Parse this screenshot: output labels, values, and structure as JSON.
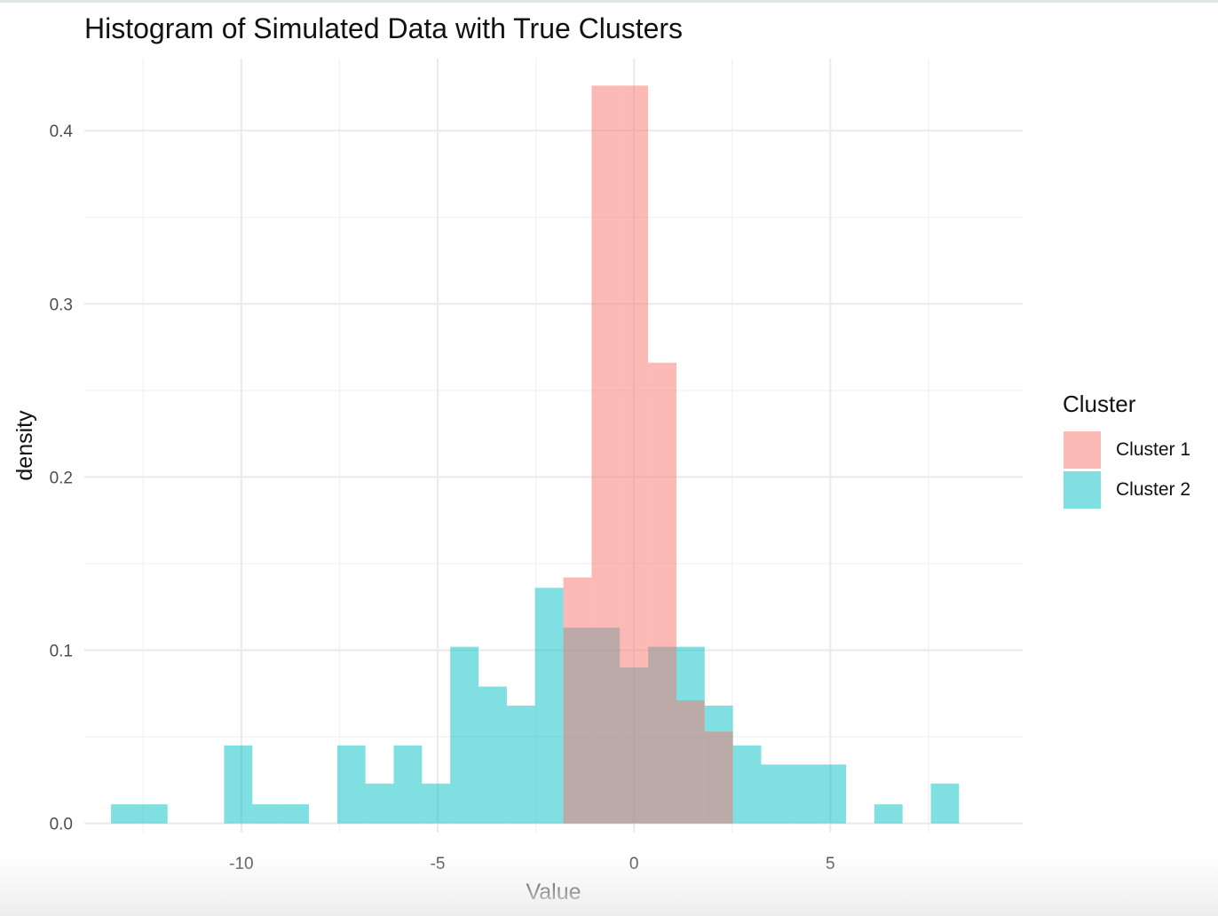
{
  "chart_data": {
    "type": "histogram",
    "title": "Histogram of Simulated Data with True Clusters",
    "xlabel": "Value",
    "ylabel": "density",
    "xlim": [
      -14.0,
      9.9
    ],
    "ylim": [
      -0.0053,
      0.4416
    ],
    "x_ticks": [
      -10,
      -5,
      0,
      5
    ],
    "x_tick_labels": [
      "-10",
      "-5",
      "0",
      "5"
    ],
    "y_ticks": [
      0.0,
      0.1,
      0.2,
      0.3,
      0.4
    ],
    "y_tick_labels": [
      "0.0",
      "0.1",
      "0.2",
      "0.3",
      "0.4"
    ],
    "grid": true,
    "bin_width": 0.72,
    "legend": {
      "title": "Cluster",
      "position": "right"
    },
    "series": [
      {
        "name": "Cluster 1",
        "color": "#F8766D",
        "bins": [
          {
            "x0": -1.8,
            "x1": -1.08,
            "density": 0.142
          },
          {
            "x0": -1.08,
            "x1": -0.36,
            "density": 0.426
          },
          {
            "x0": -0.36,
            "x1": 0.36,
            "density": 0.426
          },
          {
            "x0": 0.36,
            "x1": 1.08,
            "density": 0.266
          },
          {
            "x0": 1.08,
            "x1": 1.8,
            "density": 0.071
          },
          {
            "x0": 1.8,
            "x1": 2.52,
            "density": 0.053
          }
        ]
      },
      {
        "name": "Cluster 2",
        "color": "#00BFC4",
        "bins": [
          {
            "x0": -13.32,
            "x1": -12.6,
            "density": 0.011
          },
          {
            "x0": -12.6,
            "x1": -11.88,
            "density": 0.011
          },
          {
            "x0": -10.44,
            "x1": -9.72,
            "density": 0.045
          },
          {
            "x0": -9.72,
            "x1": -9.0,
            "density": 0.011
          },
          {
            "x0": -9.0,
            "x1": -8.28,
            "density": 0.011
          },
          {
            "x0": -7.56,
            "x1": -6.84,
            "density": 0.045
          },
          {
            "x0": -6.84,
            "x1": -6.12,
            "density": 0.023
          },
          {
            "x0": -6.12,
            "x1": -5.4,
            "density": 0.045
          },
          {
            "x0": -5.4,
            "x1": -4.68,
            "density": 0.023
          },
          {
            "x0": -4.68,
            "x1": -3.96,
            "density": 0.102
          },
          {
            "x0": -3.96,
            "x1": -3.24,
            "density": 0.079
          },
          {
            "x0": -3.24,
            "x1": -2.52,
            "density": 0.068
          },
          {
            "x0": -2.52,
            "x1": -1.8,
            "density": 0.136
          },
          {
            "x0": -1.8,
            "x1": -1.08,
            "density": 0.113
          },
          {
            "x0": -1.08,
            "x1": -0.36,
            "density": 0.113
          },
          {
            "x0": -0.36,
            "x1": 0.36,
            "density": 0.09
          },
          {
            "x0": 0.36,
            "x1": 1.08,
            "density": 0.102
          },
          {
            "x0": 1.08,
            "x1": 1.8,
            "density": 0.102
          },
          {
            "x0": 1.8,
            "x1": 2.52,
            "density": 0.068
          },
          {
            "x0": 2.52,
            "x1": 3.24,
            "density": 0.045
          },
          {
            "x0": 3.24,
            "x1": 3.96,
            "density": 0.034
          },
          {
            "x0": 3.96,
            "x1": 4.68,
            "density": 0.034
          },
          {
            "x0": 4.68,
            "x1": 5.4,
            "density": 0.034
          },
          {
            "x0": 6.12,
            "x1": 6.84,
            "density": 0.011
          },
          {
            "x0": 7.56,
            "x1": 8.28,
            "density": 0.023
          }
        ]
      }
    ]
  }
}
